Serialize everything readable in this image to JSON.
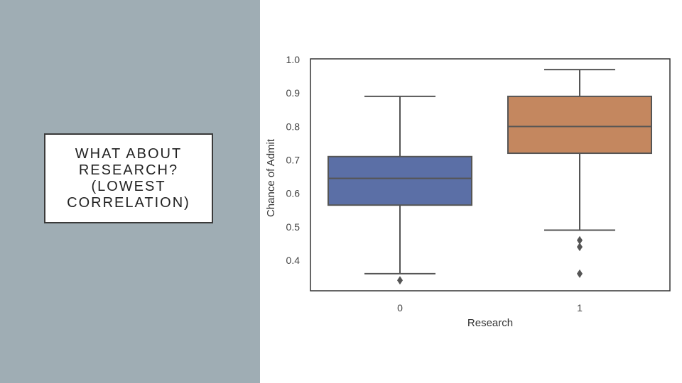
{
  "slide": {
    "title_lines": [
      "WHAT ABOUT",
      "RESEARCH?",
      "(LOWEST",
      "CORRELATION)"
    ],
    "panel_color": "#9fadb4"
  },
  "chart_data": {
    "type": "box",
    "categories": [
      "0",
      "1"
    ],
    "xlabel": "Research",
    "ylabel": "Chance of Admit",
    "ylim": [
      0.31,
      1.0
    ],
    "yticks": [
      "1.0",
      "0.9",
      "0.8",
      "0.7",
      "0.6",
      "0.5",
      "0.4"
    ],
    "grid": false,
    "boxes": [
      {
        "category": "0",
        "color": "#5b6fa6",
        "q1": 0.565,
        "median": 0.645,
        "q3": 0.71,
        "whisker_low": 0.36,
        "whisker_high": 0.89,
        "outliers": [
          0.34
        ]
      },
      {
        "category": "1",
        "color": "#c4875f",
        "q1": 0.72,
        "median": 0.8,
        "q3": 0.89,
        "whisker_low": 0.49,
        "whisker_high": 0.97,
        "outliers": [
          0.46,
          0.44,
          0.36
        ]
      }
    ]
  }
}
